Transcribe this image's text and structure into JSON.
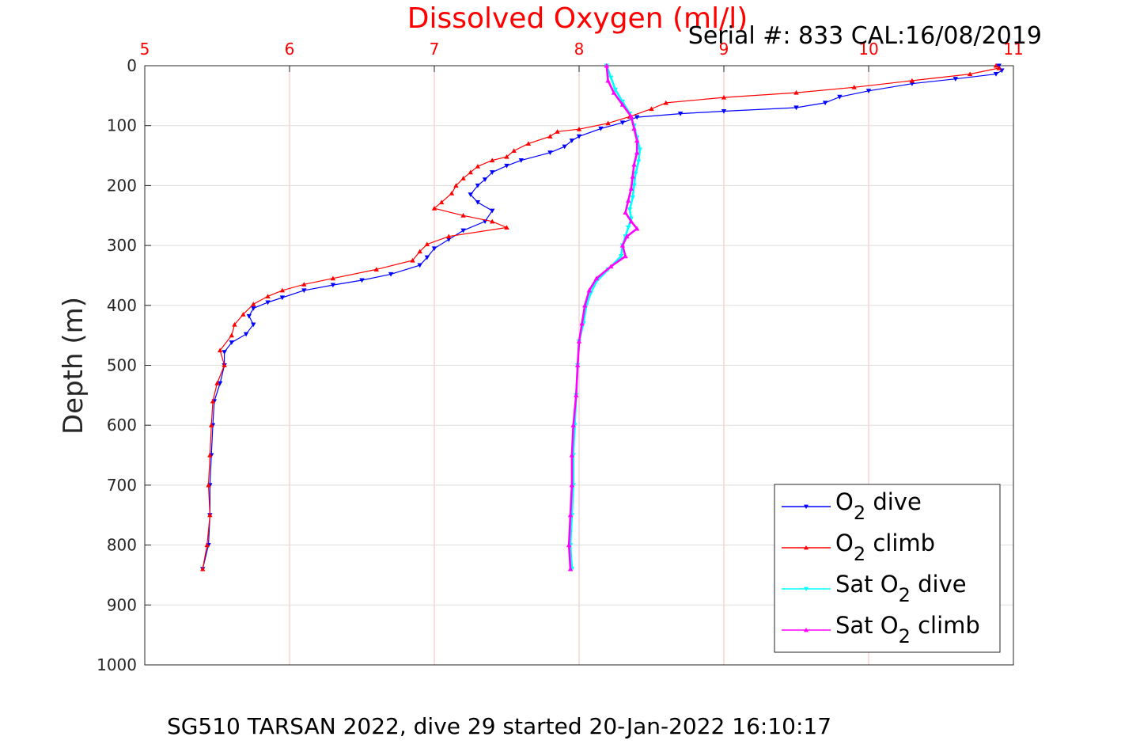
{
  "chart_data": {
    "type": "line",
    "title": "Dissolved Oxygen (ml/l)",
    "subtitle": "Serial #: 833  CAL:16/08/2019",
    "xlabel": "",
    "ylabel": "Depth (m)",
    "footer": "SG510 TARSAN 2022, dive 29 started 20-Jan-2022 16:10:17",
    "xlim": [
      5,
      11
    ],
    "ylim": [
      0,
      1000
    ],
    "y_reversed": true,
    "x_axis_position": "top",
    "x_ticks": [
      "5",
      "6",
      "7",
      "8",
      "9",
      "10",
      "11"
    ],
    "y_ticks": [
      "0",
      "100",
      "200",
      "300",
      "400",
      "500",
      "600",
      "700",
      "800",
      "900",
      "1000"
    ],
    "grid": true,
    "legend_position": "bottom-right",
    "series": [
      {
        "name": "O2 dive",
        "legend_base": "O",
        "legend_sub": "2",
        "legend_suffix": " dive",
        "color": "#0000ff",
        "marker": "triangle-down",
        "points": [
          [
            10.9,
            0
          ],
          [
            10.92,
            8
          ],
          [
            10.88,
            14
          ],
          [
            10.6,
            22
          ],
          [
            10.3,
            30
          ],
          [
            10.0,
            42
          ],
          [
            9.8,
            52
          ],
          [
            9.7,
            62
          ],
          [
            9.5,
            70
          ],
          [
            9.0,
            76
          ],
          [
            8.7,
            80
          ],
          [
            8.4,
            86
          ],
          [
            8.3,
            95
          ],
          [
            8.15,
            105
          ],
          [
            8.0,
            118
          ],
          [
            7.95,
            125
          ],
          [
            7.9,
            135
          ],
          [
            7.8,
            145
          ],
          [
            7.6,
            158
          ],
          [
            7.5,
            167
          ],
          [
            7.4,
            178
          ],
          [
            7.35,
            190
          ],
          [
            7.3,
            200
          ],
          [
            7.25,
            215
          ],
          [
            7.3,
            228
          ],
          [
            7.4,
            242
          ],
          [
            7.35,
            260
          ],
          [
            7.2,
            275
          ],
          [
            7.1,
            290
          ],
          [
            7.0,
            305
          ],
          [
            6.95,
            320
          ],
          [
            6.9,
            333
          ],
          [
            6.7,
            348
          ],
          [
            6.5,
            358
          ],
          [
            6.3,
            366
          ],
          [
            6.1,
            375
          ],
          [
            5.95,
            387
          ],
          [
            5.85,
            395
          ],
          [
            5.75,
            405
          ],
          [
            5.72,
            418
          ],
          [
            5.75,
            432
          ],
          [
            5.7,
            448
          ],
          [
            5.6,
            462
          ],
          [
            5.55,
            478
          ],
          [
            5.55,
            500
          ],
          [
            5.52,
            530
          ],
          [
            5.48,
            560
          ],
          [
            5.47,
            600
          ],
          [
            5.46,
            650
          ],
          [
            5.45,
            700
          ],
          [
            5.45,
            750
          ],
          [
            5.44,
            800
          ],
          [
            5.4,
            840
          ]
        ]
      },
      {
        "name": "O2 climb",
        "legend_base": "O",
        "legend_sub": "2",
        "legend_suffix": " climb",
        "color": "#ff0000",
        "marker": "triangle-up",
        "points": [
          [
            10.88,
            0
          ],
          [
            10.9,
            4
          ],
          [
            10.7,
            14
          ],
          [
            10.3,
            25
          ],
          [
            9.9,
            36
          ],
          [
            9.5,
            45
          ],
          [
            9.0,
            53
          ],
          [
            8.6,
            62
          ],
          [
            8.5,
            72
          ],
          [
            8.35,
            85
          ],
          [
            8.2,
            96
          ],
          [
            8.0,
            106
          ],
          [
            7.85,
            110
          ],
          [
            7.8,
            118
          ],
          [
            7.65,
            130
          ],
          [
            7.55,
            142
          ],
          [
            7.5,
            152
          ],
          [
            7.4,
            158
          ],
          [
            7.3,
            168
          ],
          [
            7.25,
            178
          ],
          [
            7.2,
            188
          ],
          [
            7.15,
            200
          ],
          [
            7.12,
            213
          ],
          [
            7.05,
            228
          ],
          [
            7.0,
            238
          ],
          [
            7.2,
            250
          ],
          [
            7.4,
            260
          ],
          [
            7.5,
            270
          ],
          [
            7.1,
            285
          ],
          [
            6.95,
            298
          ],
          [
            6.9,
            310
          ],
          [
            6.85,
            325
          ],
          [
            6.6,
            340
          ],
          [
            6.3,
            355
          ],
          [
            6.1,
            365
          ],
          [
            5.95,
            375
          ],
          [
            5.85,
            385
          ],
          [
            5.75,
            398
          ],
          [
            5.68,
            415
          ],
          [
            5.62,
            432
          ],
          [
            5.6,
            450
          ],
          [
            5.52,
            475
          ],
          [
            5.55,
            500
          ],
          [
            5.5,
            530
          ],
          [
            5.47,
            560
          ],
          [
            5.46,
            600
          ],
          [
            5.45,
            650
          ],
          [
            5.44,
            700
          ],
          [
            5.45,
            750
          ],
          [
            5.43,
            800
          ],
          [
            5.4,
            840
          ]
        ]
      },
      {
        "name": "Sat O2 dive",
        "legend_base": "Sat O",
        "legend_sub": "2",
        "legend_suffix": " dive",
        "color": "#00ffff",
        "marker": "triangle-down",
        "points": [
          [
            8.19,
            0
          ],
          [
            8.22,
            20
          ],
          [
            8.25,
            40
          ],
          [
            8.3,
            60
          ],
          [
            8.35,
            80
          ],
          [
            8.38,
            100
          ],
          [
            8.4,
            120
          ],
          [
            8.42,
            140
          ],
          [
            8.41,
            160
          ],
          [
            8.39,
            180
          ],
          [
            8.38,
            200
          ],
          [
            8.37,
            220
          ],
          [
            8.35,
            240
          ],
          [
            8.36,
            255
          ],
          [
            8.34,
            270
          ],
          [
            8.32,
            285
          ],
          [
            8.3,
            300
          ],
          [
            8.29,
            318
          ],
          [
            8.2,
            340
          ],
          [
            8.12,
            360
          ],
          [
            8.08,
            380
          ],
          [
            8.05,
            400
          ],
          [
            8.03,
            430
          ],
          [
            8.0,
            460
          ],
          [
            7.99,
            500
          ],
          [
            7.98,
            550
          ],
          [
            7.97,
            600
          ],
          [
            7.96,
            650
          ],
          [
            7.96,
            700
          ],
          [
            7.95,
            750
          ],
          [
            7.94,
            800
          ],
          [
            7.95,
            840
          ]
        ]
      },
      {
        "name": "Sat O2 climb",
        "legend_base": "Sat O",
        "legend_sub": "2",
        "legend_suffix": " climb",
        "color": "#ff00ff",
        "marker": "triangle-up",
        "points": [
          [
            8.19,
            0
          ],
          [
            8.2,
            25
          ],
          [
            8.24,
            45
          ],
          [
            8.3,
            65
          ],
          [
            8.36,
            85
          ],
          [
            8.38,
            105
          ],
          [
            8.4,
            125
          ],
          [
            8.4,
            145
          ],
          [
            8.38,
            165
          ],
          [
            8.37,
            185
          ],
          [
            8.36,
            205
          ],
          [
            8.34,
            225
          ],
          [
            8.32,
            245
          ],
          [
            8.36,
            260
          ],
          [
            8.4,
            272
          ],
          [
            8.33,
            285
          ],
          [
            8.3,
            300
          ],
          [
            8.32,
            318
          ],
          [
            8.22,
            335
          ],
          [
            8.12,
            355
          ],
          [
            8.07,
            375
          ],
          [
            8.04,
            400
          ],
          [
            8.02,
            430
          ],
          [
            8.0,
            460
          ],
          [
            7.99,
            500
          ],
          [
            7.98,
            550
          ],
          [
            7.96,
            600
          ],
          [
            7.95,
            650
          ],
          [
            7.95,
            700
          ],
          [
            7.94,
            750
          ],
          [
            7.93,
            800
          ],
          [
            7.94,
            840
          ]
        ]
      }
    ]
  }
}
